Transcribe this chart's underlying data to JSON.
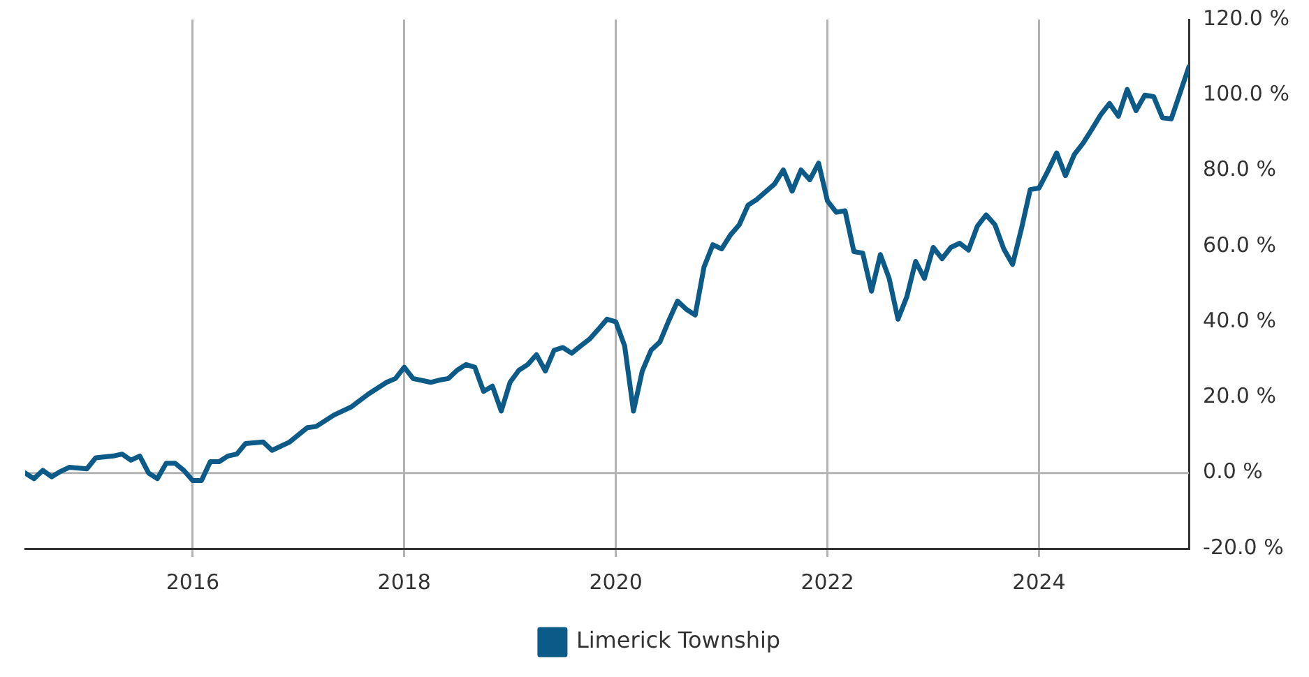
{
  "chart_data": {
    "type": "line",
    "legend": "bottom",
    "grid": "x",
    "line_style": "solid",
    "marker": "none",
    "xlim": [
      "2014-06",
      "2025-06"
    ],
    "xticks": [
      "2016",
      "2018",
      "2020",
      "2022",
      "2024"
    ],
    "ylim": [
      -20,
      120
    ],
    "yticks": [
      {
        "value": -20,
        "label": "-20.0 %"
      },
      {
        "value": 0,
        "label": "0.0 %"
      },
      {
        "value": 20,
        "label": "20.0 %"
      },
      {
        "value": 40,
        "label": "40.0 %"
      },
      {
        "value": 60,
        "label": "60.0 %"
      },
      {
        "value": 80,
        "label": "80.0 %"
      },
      {
        "value": 100,
        "label": "100.0 %"
      },
      {
        "value": 120,
        "label": "120.0 %"
      }
    ],
    "ref_lines": [
      {
        "axis": "y",
        "value": 0,
        "color": "#b3b3b3"
      }
    ],
    "x": [
      "2014-06",
      "2014-07",
      "2014-08",
      "2014-09",
      "2014-10",
      "2014-11",
      "2015-01",
      "2015-02",
      "2015-04",
      "2015-05",
      "2015-06",
      "2015-07",
      "2015-08",
      "2015-09",
      "2015-10",
      "2015-11",
      "2015-12",
      "2016-01",
      "2016-02",
      "2016-03",
      "2016-04",
      "2016-05",
      "2016-06",
      "2016-07",
      "2016-09",
      "2016-10",
      "2016-12",
      "2017-02",
      "2017-03",
      "2017-05",
      "2017-06",
      "2017-07",
      "2017-09",
      "2017-11",
      "2017-12",
      "2018-01",
      "2018-02",
      "2018-04",
      "2018-05",
      "2018-06",
      "2018-07",
      "2018-08",
      "2018-09",
      "2018-10",
      "2018-11",
      "2018-12",
      "2019-01",
      "2019-02",
      "2019-03",
      "2019-04",
      "2019-05",
      "2019-06",
      "2019-07",
      "2019-08",
      "2019-09",
      "2019-10",
      "2019-11",
      "2019-12",
      "2020-01",
      "2020-02",
      "2020-03",
      "2020-04",
      "2020-05",
      "2020-06",
      "2020-07",
      "2020-08",
      "2020-09",
      "2020-10",
      "2020-11",
      "2020-12",
      "2021-01",
      "2021-02",
      "2021-03",
      "2021-04",
      "2021-05",
      "2021-07",
      "2021-08",
      "2021-09",
      "2021-10",
      "2021-11",
      "2021-12",
      "2022-01",
      "2022-02",
      "2022-03",
      "2022-04",
      "2022-05",
      "2022-06",
      "2022-07",
      "2022-08",
      "2022-09",
      "2022-10",
      "2022-11",
      "2022-12",
      "2023-01",
      "2023-02",
      "2023-03",
      "2023-04",
      "2023-05",
      "2023-06",
      "2023-07",
      "2023-08",
      "2023-09",
      "2023-10",
      "2023-11",
      "2023-12",
      "2024-01",
      "2024-02",
      "2024-03",
      "2024-04",
      "2024-05",
      "2024-06",
      "2024-07",
      "2024-08",
      "2024-09",
      "2024-10",
      "2024-11",
      "2024-12",
      "2025-01",
      "2025-02",
      "2025-03",
      "2025-04",
      "2025-06"
    ],
    "series": [
      {
        "name": "Limerick Township",
        "color": "#0b5a88",
        "values": [
          0,
          -1.5,
          0.7,
          -1,
          0.4,
          1.5,
          1.1,
          4,
          4.5,
          5,
          3.4,
          4.5,
          0,
          -1.5,
          2.6,
          2.6,
          0.7,
          -2,
          -2,
          3,
          3,
          4.5,
          5,
          7.8,
          8.2,
          6,
          8.2,
          12,
          12.3,
          15.3,
          16.4,
          17.5,
          21,
          24,
          25,
          28,
          25,
          24,
          24.6,
          25,
          27.2,
          28.7,
          28,
          21.6,
          23,
          16.4,
          24,
          27.2,
          28.7,
          31.3,
          27,
          32.5,
          33.2,
          31.7,
          33.6,
          35.4,
          38,
          40.7,
          40,
          33.6,
          16.4,
          27,
          32.5,
          34.7,
          40.3,
          45.5,
          43.3,
          41.8,
          54.5,
          60.4,
          59.3,
          63,
          65.7,
          70.9,
          72.4,
          76.5,
          80.2,
          74.6,
          80.2,
          77.6,
          82,
          72,
          69,
          69.4,
          58.6,
          58.2,
          48.1,
          57.8,
          51.5,
          40.7,
          46.6,
          56,
          51.5,
          59.7,
          56.7,
          59.7,
          60.8,
          59,
          65.3,
          68.3,
          65.7,
          59.3,
          55.2,
          64.6,
          75,
          75.4,
          79.9,
          84.7,
          78.7,
          84.3,
          87.3,
          91,
          94.8,
          97.8,
          94.4,
          101.5,
          95.9,
          100,
          99.6,
          94,
          93.7,
          107.5
        ]
      }
    ]
  }
}
